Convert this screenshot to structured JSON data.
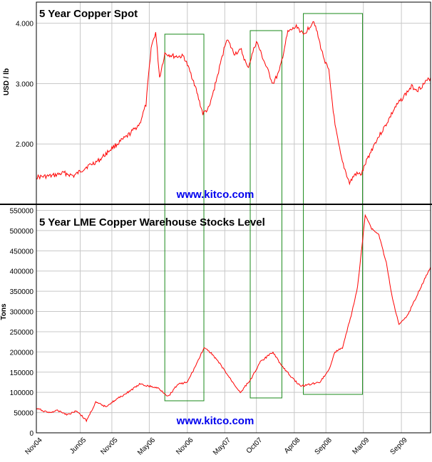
{
  "chart_data": [
    {
      "type": "line",
      "title": "5 Year Copper Spot",
      "ylabel": "USD / lb",
      "watermark": "www.kitco.com",
      "ylim": [
        1.0,
        4.35
      ],
      "y_ticks": [
        "2.000",
        "3.000",
        "4.000"
      ],
      "y_tick_values": [
        2,
        3,
        4
      ],
      "x_range": [
        "2004-11-01",
        "2010-01-20"
      ],
      "grid": true,
      "line_color": "#ff0000",
      "series": [
        {
          "x": [
            "2004-11-01",
            "2005-01-15",
            "2005-03-15",
            "2005-05-01",
            "2005-07-01",
            "2005-09-01",
            "2005-11-01",
            "2006-01-15",
            "2006-03-15",
            "2006-04-15",
            "2006-05-10",
            "2006-06-01",
            "2006-06-20",
            "2006-07-15",
            "2006-09-01",
            "2006-10-15",
            "2006-12-01",
            "2007-01-15",
            "2007-02-15",
            "2007-04-01",
            "2007-05-10",
            "2007-06-15",
            "2007-07-20",
            "2007-08-20",
            "2007-10-01",
            "2007-11-15",
            "2007-12-20",
            "2008-01-20",
            "2008-03-01",
            "2008-04-15",
            "2008-05-15",
            "2008-06-15",
            "2008-07-05",
            "2008-08-15",
            "2008-09-15",
            "2008-10-15",
            "2008-11-15",
            "2008-12-24",
            "2009-01-20",
            "2009-02-20",
            "2009-03-20",
            "2009-05-01",
            "2009-06-15",
            "2009-08-01",
            "2009-09-15",
            "2009-10-20",
            "2009-11-20",
            "2010-01-20"
          ],
          "y": [
            1.45,
            1.47,
            1.52,
            1.47,
            1.62,
            1.73,
            1.93,
            2.13,
            2.33,
            2.65,
            3.6,
            3.85,
            3.1,
            3.5,
            3.45,
            3.45,
            3.05,
            2.5,
            2.6,
            3.2,
            3.75,
            3.5,
            3.55,
            3.25,
            3.7,
            3.3,
            3.0,
            3.2,
            3.85,
            3.95,
            3.8,
            3.95,
            4.05,
            3.5,
            3.2,
            2.3,
            1.75,
            1.35,
            1.5,
            1.5,
            1.75,
            2.05,
            2.3,
            2.6,
            2.8,
            2.95,
            2.9,
            3.1
          ]
        }
      ]
    },
    {
      "type": "line",
      "title": "5 Year LME Copper Warehouse Stocks Level",
      "ylabel": "Tons",
      "watermark": "www.kitco.com",
      "ylim": [
        0,
        565000
      ],
      "y_ticks": [
        "0",
        "50000",
        "100000",
        "150000",
        "200000",
        "250000",
        "300000",
        "350000",
        "400000",
        "450000",
        "500000",
        "550000"
      ],
      "y_tick_values": [
        0,
        50000,
        100000,
        150000,
        200000,
        250000,
        300000,
        350000,
        400000,
        450000,
        500000,
        550000
      ],
      "x_range": [
        "2004-11-01",
        "2010-01-20"
      ],
      "x_ticks": [
        "Nov04",
        "Jun05",
        "Nov05",
        "May06",
        "Nov06",
        "May07",
        "Oct07",
        "Apr08",
        "Sep08",
        "Mar09",
        "Sep09"
      ],
      "x_tick_dates": [
        "2004-11-01",
        "2005-06-01",
        "2005-11-01",
        "2006-05-01",
        "2006-11-01",
        "2007-05-01",
        "2007-10-01",
        "2008-04-01",
        "2008-09-01",
        "2009-03-01",
        "2009-09-01"
      ],
      "grid": true,
      "line_color": "#ff0000",
      "series": [
        {
          "x": [
            "2004-11-01",
            "2005-01-01",
            "2005-02-15",
            "2005-04-01",
            "2005-05-15",
            "2005-07-01",
            "2005-08-15",
            "2005-10-01",
            "2005-12-01",
            "2006-02-01",
            "2006-03-15",
            "2006-05-01",
            "2006-06-15",
            "2006-08-01",
            "2006-09-15",
            "2006-11-01",
            "2006-12-20",
            "2007-01-20",
            "2007-03-01",
            "2007-04-15",
            "2007-06-01",
            "2007-07-15",
            "2007-09-01",
            "2007-10-20",
            "2007-12-20",
            "2008-02-01",
            "2008-03-15",
            "2008-05-01",
            "2008-06-15",
            "2008-08-01",
            "2008-09-15",
            "2008-10-15",
            "2008-11-20",
            "2009-01-01",
            "2009-02-01",
            "2009-02-20",
            "2009-03-10",
            "2009-04-10",
            "2009-05-15",
            "2009-06-20",
            "2009-07-20",
            "2009-08-20",
            "2009-10-01",
            "2009-11-15",
            "2010-01-20"
          ],
          "y": [
            60000,
            50000,
            55000,
            45000,
            55000,
            30000,
            75000,
            65000,
            85000,
            105000,
            120000,
            115000,
            110000,
            90000,
            120000,
            125000,
            175000,
            210000,
            195000,
            165000,
            130000,
            100000,
            130000,
            175000,
            200000,
            165000,
            140000,
            115000,
            120000,
            125000,
            155000,
            200000,
            210000,
            290000,
            360000,
            450000,
            540000,
            505000,
            490000,
            420000,
            330000,
            270000,
            290000,
            340000,
            410000
          ]
        }
      ]
    }
  ]
}
